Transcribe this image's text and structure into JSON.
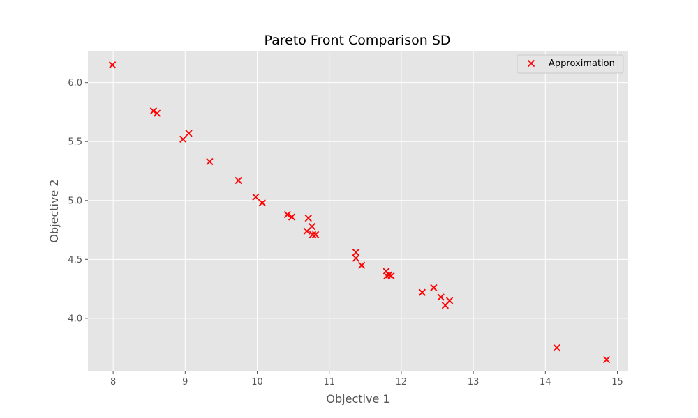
{
  "chart_data": {
    "type": "scatter",
    "title": "Pareto Front Comparison SD",
    "xlabel": "Objective 1",
    "ylabel": "Objective 2",
    "xlim": [
      7.65,
      15.15
    ],
    "ylim": [
      3.55,
      6.27
    ],
    "x_ticks": [
      8,
      9,
      10,
      11,
      12,
      13,
      14,
      15
    ],
    "y_ticks": [
      4.0,
      4.5,
      5.0,
      5.5,
      6.0
    ],
    "x_tick_labels": [
      "8",
      "9",
      "10",
      "11",
      "12",
      "13",
      "14",
      "15"
    ],
    "y_tick_labels": [
      "4.0",
      "4.5",
      "5.0",
      "5.5",
      "6.0"
    ],
    "grid": true,
    "legend": {
      "position": "top-right",
      "entries": [
        "Approximation"
      ]
    },
    "series": [
      {
        "name": "Approximation",
        "marker": "x",
        "color": "#ff0000",
        "points": [
          [
            7.99,
            6.15
          ],
          [
            8.56,
            5.76
          ],
          [
            8.61,
            5.74
          ],
          [
            9.05,
            5.57
          ],
          [
            8.97,
            5.52
          ],
          [
            9.34,
            5.33
          ],
          [
            9.74,
            5.17
          ],
          [
            9.98,
            5.03
          ],
          [
            10.07,
            4.98
          ],
          [
            10.42,
            4.88
          ],
          [
            10.48,
            4.86
          ],
          [
            10.71,
            4.85
          ],
          [
            10.76,
            4.78
          ],
          [
            10.69,
            4.74
          ],
          [
            10.77,
            4.71
          ],
          [
            10.81,
            4.71
          ],
          [
            11.37,
            4.56
          ],
          [
            11.37,
            4.51
          ],
          [
            11.45,
            4.45
          ],
          [
            11.79,
            4.4
          ],
          [
            11.83,
            4.37
          ],
          [
            11.8,
            4.36
          ],
          [
            11.86,
            4.36
          ],
          [
            12.29,
            4.22
          ],
          [
            12.45,
            4.26
          ],
          [
            12.55,
            4.18
          ],
          [
            12.67,
            4.15
          ],
          [
            12.61,
            4.11
          ],
          [
            14.16,
            3.75
          ],
          [
            14.85,
            3.65
          ]
        ]
      }
    ]
  }
}
